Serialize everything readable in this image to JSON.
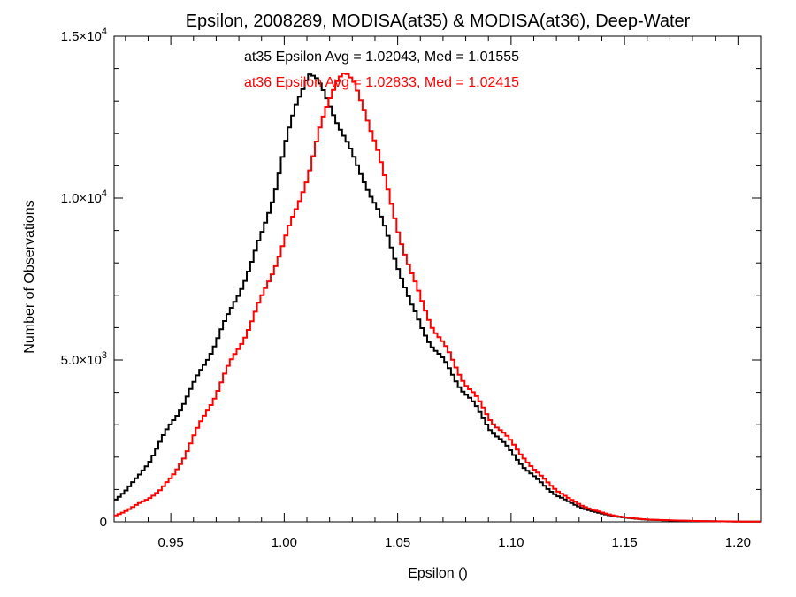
{
  "chart_data": {
    "type": "line",
    "title": "Epsilon, 2008289, MODISA(at35) & MODISA(at36), Deep-Water",
    "xlabel": "Epsilon ()",
    "ylabel": "Number of Observations",
    "xlim": [
      0.925,
      1.21
    ],
    "ylim": [
      0,
      15000
    ],
    "x_ticks": [
      {
        "value": 0.95,
        "label": "0.95"
      },
      {
        "value": 1.0,
        "label": "1.00"
      },
      {
        "value": 1.05,
        "label": "1.05"
      },
      {
        "value": 1.1,
        "label": "1.10"
      },
      {
        "value": 1.15,
        "label": "1.15"
      },
      {
        "value": 1.2,
        "label": "1.20"
      }
    ],
    "y_ticks": [
      {
        "value": 0,
        "mantissa": "0",
        "exponent": ""
      },
      {
        "value": 5000,
        "mantissa": "5.0×10",
        "exponent": "3"
      },
      {
        "value": 10000,
        "mantissa": "1.0×10",
        "exponent": "4"
      },
      {
        "value": 15000,
        "mantissa": "1.5×10",
        "exponent": "4"
      }
    ],
    "annotations": [
      {
        "text": "at35 Epsilon Avg = 1.02043, Med = 1.01555",
        "color": "#000000"
      },
      {
        "text": "at36 Epsilon Avg = 1.02833, Med = 1.02415",
        "color": "#ff0000"
      }
    ],
    "series": [
      {
        "color": "#000000",
        "points": [
          [
            0.925,
            700
          ],
          [
            0.93,
            1000
          ],
          [
            0.935,
            1400
          ],
          [
            0.94,
            1900
          ],
          [
            0.945,
            2500
          ],
          [
            0.95,
            3100
          ],
          [
            0.955,
            3700
          ],
          [
            0.96,
            4300
          ],
          [
            0.965,
            5000
          ],
          [
            0.97,
            5700
          ],
          [
            0.975,
            6400
          ],
          [
            0.98,
            7200
          ],
          [
            0.985,
            8000
          ],
          [
            0.99,
            9000
          ],
          [
            0.995,
            10200
          ],
          [
            1.0,
            11700
          ],
          [
            1.005,
            13000
          ],
          [
            1.01,
            13900
          ],
          [
            1.013,
            13700
          ],
          [
            1.017,
            13200
          ],
          [
            1.02,
            12800
          ],
          [
            1.025,
            12000
          ],
          [
            1.03,
            11200
          ],
          [
            1.035,
            10500
          ],
          [
            1.04,
            9700
          ],
          [
            1.045,
            8800
          ],
          [
            1.05,
            7800
          ],
          [
            1.055,
            6700
          ],
          [
            1.06,
            6000
          ],
          [
            1.065,
            5400
          ],
          [
            1.07,
            4900
          ],
          [
            1.075,
            4400
          ],
          [
            1.08,
            3900
          ],
          [
            1.085,
            3400
          ],
          [
            1.09,
            2900
          ],
          [
            1.095,
            2500
          ],
          [
            1.1,
            2100
          ],
          [
            1.105,
            1700
          ],
          [
            1.11,
            1350
          ],
          [
            1.115,
            1050
          ],
          [
            1.12,
            800
          ],
          [
            1.125,
            600
          ],
          [
            1.13,
            450
          ],
          [
            1.135,
            330
          ],
          [
            1.14,
            240
          ],
          [
            1.145,
            175
          ],
          [
            1.15,
            125
          ],
          [
            1.155,
            90
          ],
          [
            1.16,
            65
          ],
          [
            1.17,
            40
          ],
          [
            1.18,
            25
          ],
          [
            1.19,
            15
          ],
          [
            1.2,
            8
          ],
          [
            1.21,
            5
          ]
        ]
      },
      {
        "color": "#ff0000",
        "points": [
          [
            0.925,
            200
          ],
          [
            0.93,
            350
          ],
          [
            0.935,
            550
          ],
          [
            0.94,
            750
          ],
          [
            0.945,
            1000
          ],
          [
            0.95,
            1400
          ],
          [
            0.955,
            2000
          ],
          [
            0.96,
            2700
          ],
          [
            0.965,
            3400
          ],
          [
            0.97,
            4100
          ],
          [
            0.975,
            4800
          ],
          [
            0.98,
            5500
          ],
          [
            0.985,
            6200
          ],
          [
            0.99,
            7000
          ],
          [
            0.995,
            7900
          ],
          [
            1.0,
            8800
          ],
          [
            1.005,
            9700
          ],
          [
            1.01,
            10800
          ],
          [
            1.015,
            12100
          ],
          [
            1.02,
            13200
          ],
          [
            1.023,
            13800
          ],
          [
            1.026,
            13900
          ],
          [
            1.03,
            13500
          ],
          [
            1.035,
            12700
          ],
          [
            1.04,
            11600
          ],
          [
            1.045,
            10200
          ],
          [
            1.05,
            8900
          ],
          [
            1.055,
            7700
          ],
          [
            1.06,
            6800
          ],
          [
            1.065,
            6000
          ],
          [
            1.07,
            5400
          ],
          [
            1.075,
            4800
          ],
          [
            1.08,
            4200
          ],
          [
            1.085,
            3700
          ],
          [
            1.09,
            3200
          ],
          [
            1.095,
            2800
          ],
          [
            1.1,
            2400
          ],
          [
            1.105,
            2000
          ],
          [
            1.11,
            1550
          ],
          [
            1.115,
            1250
          ],
          [
            1.12,
            950
          ],
          [
            1.125,
            700
          ],
          [
            1.13,
            520
          ],
          [
            1.135,
            380
          ],
          [
            1.14,
            270
          ],
          [
            1.145,
            190
          ],
          [
            1.15,
            135
          ],
          [
            1.155,
            95
          ],
          [
            1.16,
            70
          ],
          [
            1.17,
            45
          ],
          [
            1.18,
            28
          ],
          [
            1.19,
            17
          ],
          [
            1.2,
            10
          ],
          [
            1.21,
            6
          ]
        ]
      }
    ]
  }
}
